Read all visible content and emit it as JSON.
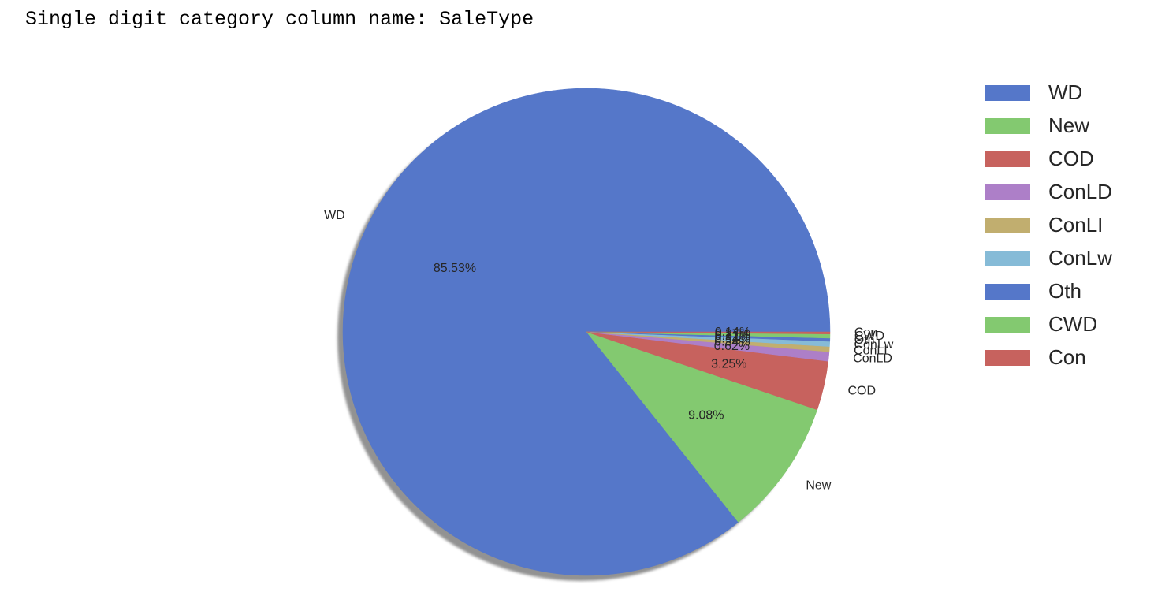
{
  "output": {
    "text": "Single digit category column name: SaleType"
  },
  "chart_data": {
    "type": "pie",
    "title": "",
    "shadow": true,
    "start_angle_deg": 0,
    "direction": "counterclockwise",
    "legend_position": "top-right",
    "categories": [
      "WD",
      "New",
      "COD",
      "ConLD",
      "ConLI",
      "ConLw",
      "Oth",
      "CWD",
      "Con"
    ],
    "values": [
      85.53,
      9.08,
      3.25,
      0.62,
      0.34,
      0.34,
      0.21,
      0.27,
      0.14
    ],
    "autopct": [
      "85.53%",
      "9.08%",
      "3.25%",
      "0.62%",
      "0.34%",
      "0.34%",
      "0.21%",
      "0.27%",
      "0.14%"
    ],
    "colors": [
      "#5577c9",
      "#83c970",
      "#c7625e",
      "#ad7fc8",
      "#c1ae6f",
      "#86bbd7",
      "#5577c9",
      "#83c970",
      "#c7625e"
    ]
  }
}
